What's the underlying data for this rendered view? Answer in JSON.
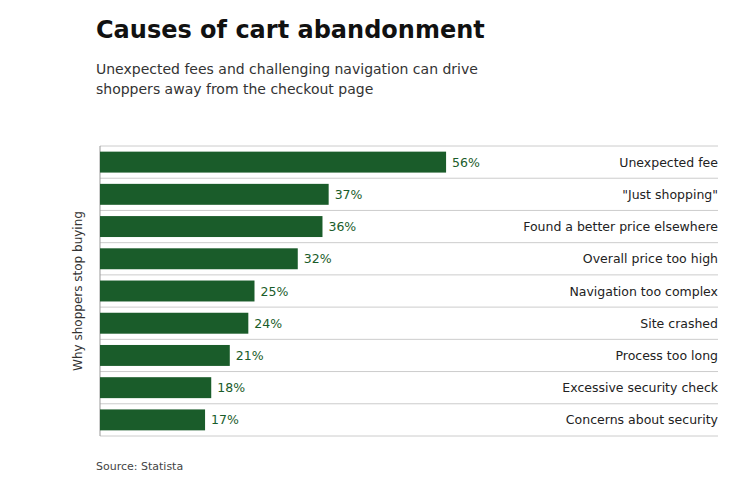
{
  "chart_data": {
    "type": "bar",
    "orientation": "horizontal",
    "title": "Causes of cart abandonment",
    "subtitle": "Unexpected fees and challenging navigation can drive\nshoppers away from the checkout page",
    "annotations": [
      "Source: Statista"
    ],
    "ylabel": "Why shoppers stop buying",
    "categories": [
      "Unexpected fee",
      "\"Just shopping\"",
      "Found a better price elsewhere",
      "Overall price too high",
      "Navigation too complex",
      "Site crashed",
      "Process too long",
      "Excessive security check",
      "Concerns about security"
    ],
    "values": [
      56,
      37,
      36,
      32,
      25,
      24,
      21,
      18,
      17
    ],
    "value_labels": [
      "56%",
      "37%",
      "36%",
      "32%",
      "25%",
      "24%",
      "21%",
      "18%",
      "17%"
    ],
    "data_labels": true,
    "color": "#1a5c2a",
    "xlim": [
      0,
      100
    ],
    "tick_labels": false
  }
}
